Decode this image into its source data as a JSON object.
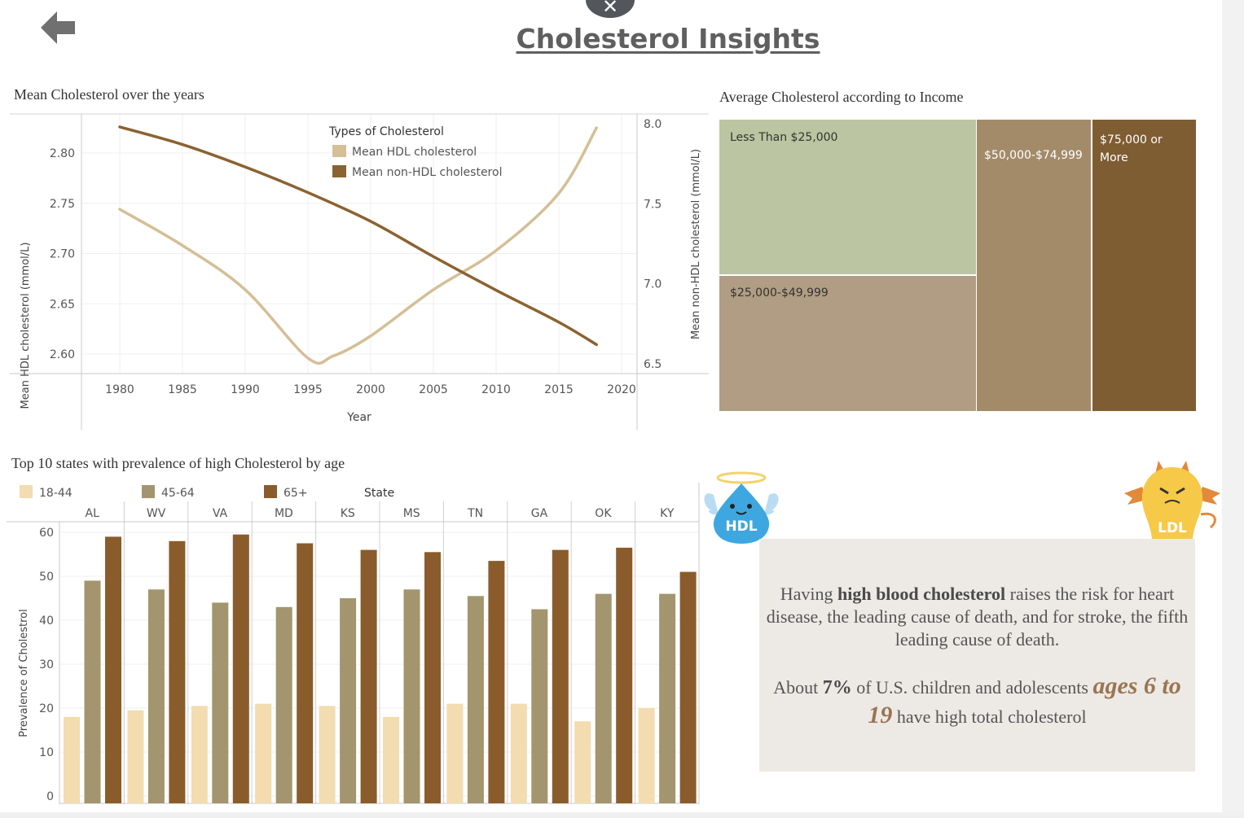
{
  "header": {
    "title": "Cholesterol  Insights",
    "close_symbol": "✕",
    "back_icon": "back-arrow-icon"
  },
  "info": {
    "p1_a": "Having ",
    "p1_b": "high blood cholesterol",
    "p1_c": " raises the risk for heart disease, the leading cause of death, and for stroke, the fifth leading cause of death.",
    "p2_a": "About ",
    "p2_b": "7%",
    "p2_c": " of U.S. children and adolescents ",
    "p2_d": "ages 6 to 19",
    "p2_e": " have high total cholesterol"
  },
  "mascots": {
    "hdl_label": "HDL",
    "ldl_label": "LDL"
  },
  "colors": {
    "hdl": "#d4bf96",
    "nonhdl": "#8b6231",
    "age_18_44": "#f2dcb0",
    "age_45_64": "#a3956d",
    "age_65p": "#8a5c2c",
    "tm_lt25": "#bcc5a1",
    "tm_25_50": "#b09d83",
    "tm_50_75": "#a38b6a",
    "tm_75p": "#7f5d32",
    "info_bg": "#ede9e5"
  },
  "chart_data": [
    {
      "type": "line",
      "title": "Mean Cholesterol over the years",
      "xlabel": "Year",
      "ylabel": "Mean HDL cholesterol (mmol/L)",
      "ylabel_right": "Mean non-HDL cholesterol (mmol/L)",
      "legend_title": "Types of Cholesterol",
      "legend_position": "top-center",
      "xlim": [
        1977,
        2021
      ],
      "x_ticks": [
        1980,
        1985,
        1990,
        1995,
        2000,
        2005,
        2010,
        2015,
        2020
      ],
      "ylim_left": [
        2.58,
        2.84
      ],
      "y_ticks_left": [
        "2.60",
        "2.65",
        "2.70",
        "2.75",
        "2.80"
      ],
      "ylim_right": [
        6.5,
        8.0
      ],
      "y_ticks_right": [
        "6.5",
        "7.0",
        "7.5",
        "8.0"
      ],
      "grid": true,
      "series": [
        {
          "name": "Mean HDL cholesterol",
          "axis": "left",
          "x": [
            1980,
            1985,
            1990,
            1995,
            1997,
            2000,
            2005,
            2010,
            2015,
            2018
          ],
          "y": [
            2.744,
            2.708,
            2.664,
            2.596,
            2.598,
            2.618,
            2.664,
            2.703,
            2.76,
            2.825
          ]
        },
        {
          "name": "Mean non-HDL cholesterol",
          "axis": "right",
          "x": [
            1980,
            1985,
            1990,
            1995,
            2000,
            2005,
            2010,
            2015,
            2018
          ],
          "y": [
            7.98,
            7.87,
            7.73,
            7.57,
            7.39,
            7.17,
            6.96,
            6.76,
            6.62
          ]
        }
      ]
    },
    {
      "type": "treemap",
      "title": "Average Cholesterol according to Income",
      "items": [
        {
          "label": "Less Than $25,000",
          "value": 0.307
        },
        {
          "label": "$25,000-$49,999",
          "value": 0.233
        },
        {
          "label": "$50,000-$74,999",
          "value": 0.241
        },
        {
          "label": "$75,000 or More",
          "value": 0.219
        }
      ]
    },
    {
      "type": "bar",
      "title": "Top 10 states with prevalence of high Cholesterol by age",
      "ylabel": "Prevalence of Cholestrol",
      "legend_title": "State",
      "legend_position": "top",
      "ylim": [
        0,
        62
      ],
      "y_ticks": [
        0,
        10,
        20,
        30,
        40,
        50,
        60
      ],
      "grid": true,
      "categories": [
        "AL",
        "WV",
        "VA",
        "MD",
        "KS",
        "MS",
        "TN",
        "GA",
        "OK",
        "KY"
      ],
      "series": [
        {
          "name": "18-44",
          "values": [
            18,
            19.5,
            20.5,
            21,
            20.5,
            18,
            21,
            21,
            17,
            20
          ]
        },
        {
          "name": "45-64",
          "values": [
            49,
            47,
            44,
            43,
            45,
            47,
            45.5,
            42.5,
            46,
            46
          ]
        },
        {
          "name": "65+",
          "values": [
            59,
            58,
            59.5,
            57.5,
            56,
            55.5,
            53.5,
            56,
            56.5,
            51
          ]
        }
      ]
    }
  ]
}
